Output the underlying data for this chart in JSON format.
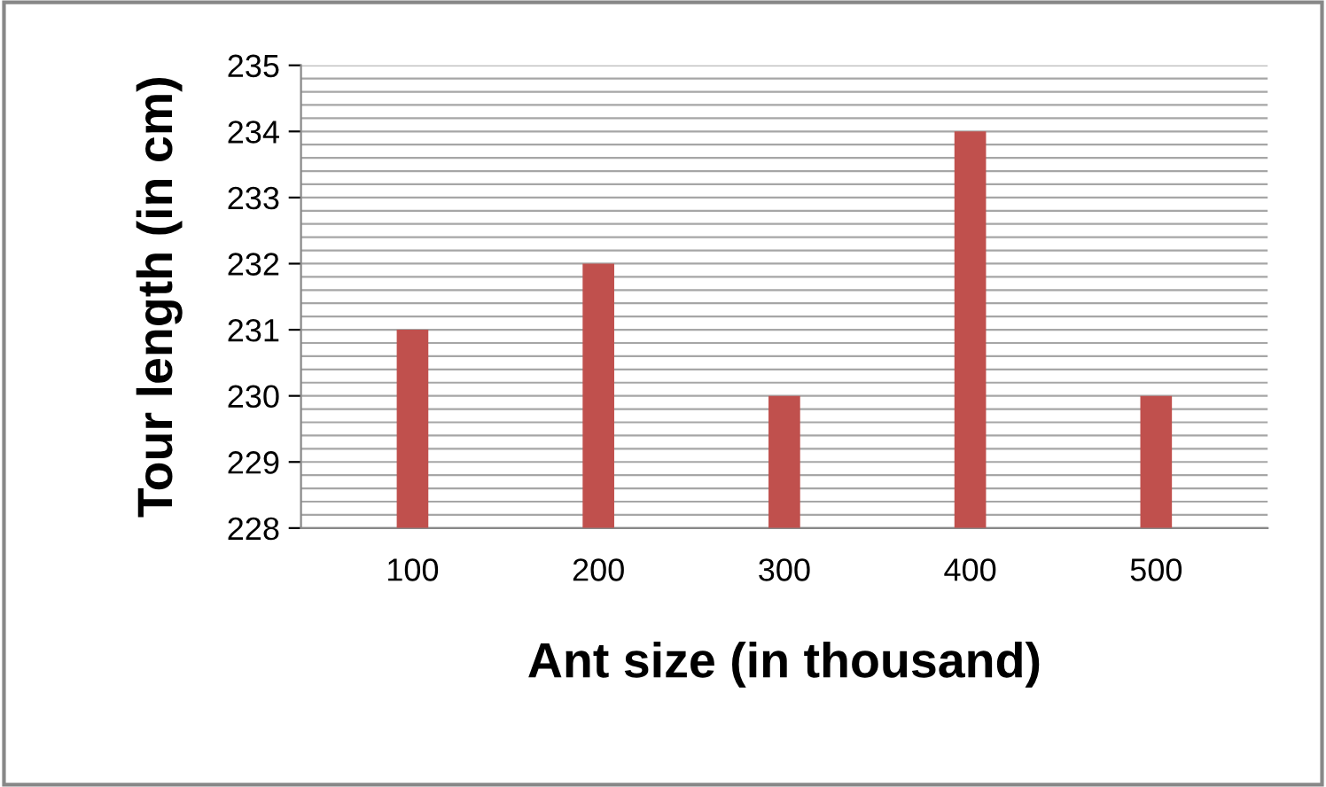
{
  "chart_data": {
    "type": "bar",
    "xlabel": "Ant size (in thousand)",
    "ylabel": "Tour length (in cm)",
    "categories": [
      "100",
      "200",
      "300",
      "400",
      "500"
    ],
    "values": [
      231,
      232,
      230,
      234,
      230
    ],
    "color": "#c0504d",
    "ylim": [
      228,
      235
    ],
    "yticks": [
      228,
      229,
      230,
      231,
      232,
      233,
      234,
      235
    ],
    "grid": "y",
    "legend": false
  }
}
